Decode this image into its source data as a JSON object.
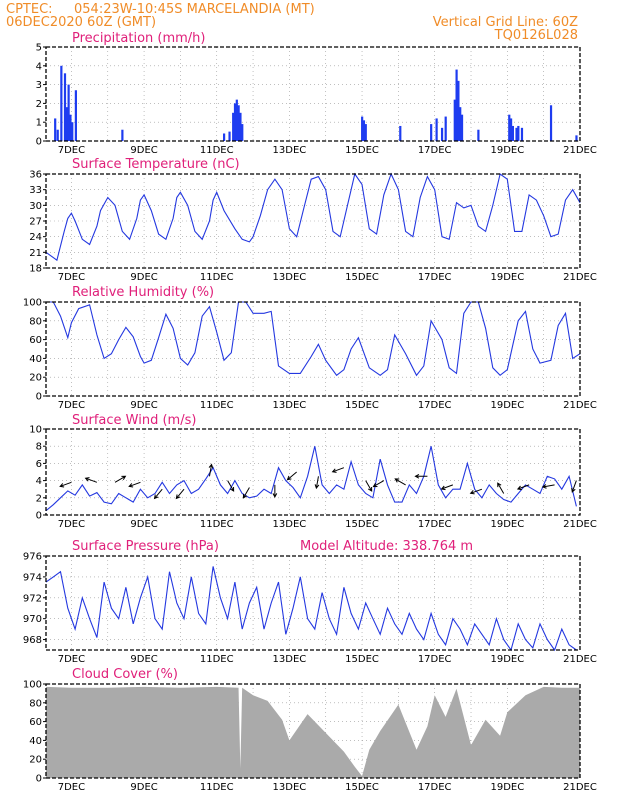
{
  "header": {
    "source": "CPTEC:",
    "location": "054:23W-10:45S   MARCELANDIA (MT)",
    "datetime": "06DEC2020 60Z (GMT)",
    "grid_note": "Vertical Grid Line: 60Z",
    "model_code": "TQ0126L028"
  },
  "x_ticks": [
    "7DEC",
    "9DEC",
    "11DEC",
    "13DEC",
    "15DEC",
    "17DEC",
    "19DEC",
    "21DEC"
  ],
  "x_range_days": [
    6.3,
    21
  ],
  "chart_data": [
    {
      "type": "bar",
      "title": "Precipitation (mm/h)",
      "ylim": [
        0,
        5
      ],
      "yticks": [
        0,
        1,
        2,
        3,
        4,
        5
      ],
      "x": [
        6.55,
        6.62,
        6.72,
        6.82,
        6.87,
        6.92,
        6.97,
        7.02,
        7.12,
        8.4,
        11.2,
        11.35,
        11.45,
        11.5,
        11.55,
        11.6,
        11.65,
        11.7,
        15.0,
        15.05,
        15.1,
        16.05,
        16.9,
        17.05,
        17.2,
        17.3,
        17.55,
        17.6,
        17.65,
        17.7,
        17.75,
        18.2,
        19.05,
        19.1,
        19.15,
        19.25,
        19.3,
        19.4,
        20.2,
        20.9
      ],
      "values": [
        1.2,
        0.6,
        4.0,
        3.6,
        1.8,
        3.0,
        1.4,
        1.0,
        2.7,
        0.6,
        0.4,
        0.5,
        1.5,
        2.0,
        2.2,
        1.9,
        1.5,
        0.9,
        1.3,
        1.1,
        0.9,
        0.8,
        0.9,
        1.2,
        0.7,
        1.3,
        2.2,
        3.8,
        3.2,
        1.8,
        1.4,
        0.6,
        1.4,
        1.2,
        0.8,
        0.7,
        0.8,
        0.7,
        1.9,
        0.3
      ]
    },
    {
      "type": "line",
      "title": "Surface Temperature (nC)",
      "ylim": [
        18,
        36
      ],
      "yticks": [
        18,
        21,
        24,
        27,
        30,
        33,
        36
      ],
      "x": [
        6.3,
        6.4,
        6.5,
        6.6,
        6.8,
        6.9,
        7.0,
        7.1,
        7.3,
        7.5,
        7.7,
        7.8,
        8.0,
        8.2,
        8.4,
        8.6,
        8.8,
        8.9,
        9.0,
        9.2,
        9.4,
        9.6,
        9.8,
        9.9,
        10.0,
        10.2,
        10.4,
        10.6,
        10.8,
        10.9,
        11.0,
        11.2,
        11.5,
        11.7,
        11.9,
        12.0,
        12.2,
        12.4,
        12.6,
        12.8,
        13.0,
        13.2,
        13.4,
        13.6,
        13.8,
        14.0,
        14.2,
        14.4,
        14.6,
        14.8,
        15.0,
        15.2,
        15.4,
        15.6,
        15.8,
        16.0,
        16.2,
        16.4,
        16.6,
        16.8,
        17.0,
        17.2,
        17.4,
        17.6,
        17.8,
        18.0,
        18.2,
        18.4,
        18.6,
        18.8,
        19.0,
        19.2,
        19.4,
        19.6,
        19.8,
        20.0,
        20.2,
        20.4,
        20.6,
        20.8,
        21.0
      ],
      "values": [
        21,
        20.5,
        20,
        19.5,
        25,
        27.5,
        28.5,
        27,
        23.5,
        22.5,
        26,
        29,
        31.5,
        30,
        25,
        23.5,
        27.5,
        31,
        32,
        29,
        24.5,
        23.5,
        27.5,
        31.5,
        32.5,
        30,
        25,
        23.5,
        27,
        31,
        32.5,
        29,
        25.5,
        23.5,
        23,
        24,
        28,
        33,
        35,
        33,
        25.5,
        24,
        29.5,
        35,
        35.5,
        33,
        25,
        24,
        30,
        36,
        34,
        25.5,
        24.5,
        32,
        36,
        33,
        25,
        24,
        31.5,
        35.5,
        33,
        24,
        23.5,
        30.5,
        29.5,
        30,
        26,
        25,
        30,
        36,
        35,
        25,
        25,
        32,
        31,
        28,
        24,
        24.5,
        31,
        33,
        30.5
      ]
    },
    {
      "type": "line",
      "title": "Relative Humidity (%)",
      "ylim": [
        0,
        100
      ],
      "yticks": [
        0,
        20,
        40,
        60,
        80,
        100
      ],
      "x": [
        6.3,
        6.5,
        6.7,
        6.9,
        7.0,
        7.2,
        7.5,
        7.7,
        7.9,
        8.1,
        8.3,
        8.5,
        8.7,
        8.9,
        9.0,
        9.2,
        9.4,
        9.6,
        9.8,
        10.0,
        10.2,
        10.4,
        10.6,
        10.8,
        11.0,
        11.2,
        11.4,
        11.6,
        11.8,
        12.0,
        12.3,
        12.5,
        12.7,
        13.0,
        13.3,
        13.6,
        13.8,
        14.0,
        14.3,
        14.5,
        14.7,
        14.9,
        15.2,
        15.5,
        15.7,
        15.9,
        16.2,
        16.5,
        16.7,
        16.9,
        17.2,
        17.4,
        17.6,
        17.8,
        18.0,
        18.2,
        18.4,
        18.6,
        18.8,
        19.0,
        19.3,
        19.5,
        19.7,
        19.9,
        20.2,
        20.4,
        20.6,
        20.8,
        21.0
      ],
      "values": [
        100,
        100,
        85,
        62,
        78,
        93,
        97,
        65,
        40,
        45,
        60,
        73,
        63,
        42,
        35,
        38,
        62,
        87,
        72,
        40,
        33,
        46,
        85,
        95,
        68,
        38,
        46,
        100,
        100,
        88,
        88,
        90,
        32,
        24,
        24,
        42,
        55,
        38,
        22,
        28,
        50,
        62,
        30,
        22,
        28,
        65,
        45,
        22,
        32,
        80,
        60,
        30,
        24,
        88,
        100,
        100,
        72,
        30,
        22,
        28,
        80,
        90,
        50,
        35,
        38,
        75,
        88,
        40,
        45
      ]
    },
    {
      "type": "line",
      "title": "Surface Wind (m/s)",
      "ylim": [
        0,
        10
      ],
      "yticks": [
        0,
        2,
        4,
        6,
        8,
        10
      ],
      "x": [
        6.3,
        6.5,
        6.7,
        6.9,
        7.1,
        7.3,
        7.5,
        7.7,
        7.9,
        8.1,
        8.3,
        8.5,
        8.7,
        8.9,
        9.1,
        9.3,
        9.5,
        9.7,
        9.9,
        10.1,
        10.3,
        10.5,
        10.7,
        10.9,
        11.1,
        11.3,
        11.5,
        11.7,
        11.9,
        12.1,
        12.3,
        12.5,
        12.7,
        12.9,
        13.1,
        13.3,
        13.5,
        13.7,
        13.9,
        14.1,
        14.3,
        14.5,
        14.7,
        14.9,
        15.1,
        15.3,
        15.5,
        15.7,
        15.9,
        16.1,
        16.3,
        16.5,
        16.7,
        16.9,
        17.1,
        17.3,
        17.5,
        17.7,
        17.9,
        18.1,
        18.3,
        18.5,
        18.7,
        18.9,
        19.1,
        19.3,
        19.5,
        19.7,
        19.9,
        20.1,
        20.3,
        20.5,
        20.7,
        20.9
      ],
      "values": [
        0.5,
        1.2,
        2.0,
        2.8,
        2.3,
        3.5,
        2.2,
        2.6,
        1.5,
        1.3,
        2.5,
        2.0,
        1.5,
        3.0,
        2.0,
        2.5,
        3.8,
        2.5,
        3.5,
        4.0,
        2.5,
        3.0,
        4.2,
        5.5,
        3.5,
        2.5,
        4.0,
        2.5,
        2.0,
        2.2,
        3.0,
        2.5,
        5.5,
        4.0,
        3.2,
        2.0,
        4.5,
        8.0,
        3.5,
        2.5,
        3.5,
        3.0,
        6.2,
        3.5,
        2.5,
        2.0,
        6.5,
        3.5,
        1.5,
        1.5,
        3.5,
        2.5,
        4.5,
        8.0,
        3.5,
        2.0,
        3.0,
        3.0,
        6.0,
        3.0,
        2.0,
        3.5,
        2.5,
        1.8,
        1.5,
        2.5,
        3.5,
        3.0,
        2.5,
        4.5,
        4.2,
        3.0,
        4.5,
        1.0
      ],
      "arrows": [
        {
          "x": 7.0,
          "speed": 3.8,
          "dir_deg": 200
        },
        {
          "x": 7.7,
          "speed": 3.8,
          "dir_deg": 160
        },
        {
          "x": 8.2,
          "speed": 3.8,
          "dir_deg": 30
        },
        {
          "x": 8.9,
          "speed": 3.8,
          "dir_deg": 200
        },
        {
          "x": 9.5,
          "speed": 3.0,
          "dir_deg": 230
        },
        {
          "x": 10.1,
          "speed": 3.0,
          "dir_deg": 230
        },
        {
          "x": 10.8,
          "speed": 4.5,
          "dir_deg": 80
        },
        {
          "x": 11.3,
          "speed": 4.0,
          "dir_deg": 300
        },
        {
          "x": 11.9,
          "speed": 3.2,
          "dir_deg": 240
        },
        {
          "x": 12.6,
          "speed": 3.5,
          "dir_deg": 270
        },
        {
          "x": 13.2,
          "speed": 5.0,
          "dir_deg": 220
        },
        {
          "x": 13.8,
          "speed": 4.5,
          "dir_deg": 260
        },
        {
          "x": 14.5,
          "speed": 5.5,
          "dir_deg": 200
        },
        {
          "x": 15.1,
          "speed": 4.0,
          "dir_deg": 300
        },
        {
          "x": 15.6,
          "speed": 4.0,
          "dir_deg": 210
        },
        {
          "x": 16.2,
          "speed": 3.5,
          "dir_deg": 150
        },
        {
          "x": 16.8,
          "speed": 4.5,
          "dir_deg": 180
        },
        {
          "x": 17.5,
          "speed": 3.5,
          "dir_deg": 200
        },
        {
          "x": 18.3,
          "speed": 3.0,
          "dir_deg": 200
        },
        {
          "x": 18.9,
          "speed": 2.5,
          "dir_deg": 120
        },
        {
          "x": 19.6,
          "speed": 3.5,
          "dir_deg": 200
        },
        {
          "x": 20.3,
          "speed": 3.5,
          "dir_deg": 190
        },
        {
          "x": 20.9,
          "speed": 4.0,
          "dir_deg": 250
        }
      ]
    },
    {
      "type": "line",
      "title": "Surface Pressure (hPa)",
      "subtitle": "Model Altitude: 338.764 m",
      "ylim": [
        967,
        976
      ],
      "yticks": [
        968,
        970,
        972,
        974,
        976
      ],
      "x": [
        6.3,
        6.5,
        6.7,
        6.9,
        7.1,
        7.3,
        7.5,
        7.7,
        7.9,
        8.1,
        8.3,
        8.5,
        8.7,
        8.9,
        9.1,
        9.3,
        9.5,
        9.7,
        9.9,
        10.1,
        10.3,
        10.5,
        10.7,
        10.9,
        11.1,
        11.3,
        11.5,
        11.7,
        11.9,
        12.1,
        12.3,
        12.5,
        12.7,
        12.9,
        13.1,
        13.3,
        13.5,
        13.7,
        13.9,
        14.1,
        14.3,
        14.5,
        14.7,
        14.9,
        15.1,
        15.3,
        15.5,
        15.7,
        15.9,
        16.1,
        16.3,
        16.5,
        16.7,
        16.9,
        17.1,
        17.3,
        17.5,
        17.7,
        17.9,
        18.1,
        18.3,
        18.5,
        18.7,
        18.9,
        19.1,
        19.3,
        19.5,
        19.7,
        19.9,
        20.1,
        20.3,
        20.5,
        20.7,
        20.9
      ],
      "values": [
        973.5,
        974.0,
        974.5,
        971.0,
        969.0,
        972.0,
        970.0,
        968.2,
        973.5,
        971.0,
        970.0,
        973.0,
        969.5,
        972.0,
        974.0,
        970.0,
        969.0,
        974.5,
        971.5,
        970.0,
        974.0,
        970.5,
        969.5,
        975.0,
        972.0,
        970.0,
        973.5,
        969.0,
        971.5,
        973.0,
        969.0,
        971.5,
        973.5,
        968.5,
        971.0,
        974.0,
        970.0,
        969.0,
        972.5,
        970.0,
        968.5,
        973.0,
        970.5,
        969.0,
        971.5,
        970.0,
        968.5,
        971.0,
        969.5,
        968.5,
        970.5,
        969.0,
        968.0,
        970.5,
        968.5,
        967.5,
        970.0,
        969.0,
        967.5,
        969.5,
        968.5,
        967.5,
        970.0,
        968.0,
        967.0,
        969.5,
        968.0,
        967.2,
        969.5,
        968.0,
        967.0,
        969.0,
        967.5,
        967.0
      ]
    },
    {
      "type": "area",
      "title": "Cloud Cover (%)",
      "ylim": [
        0,
        100
      ],
      "yticks": [
        0,
        20,
        40,
        60,
        80,
        100
      ],
      "x": [
        6.3,
        7.0,
        8.0,
        9.0,
        10.0,
        11.0,
        11.6,
        11.65,
        11.7,
        12.0,
        12.4,
        12.8,
        13.0,
        13.5,
        14.0,
        14.5,
        14.8,
        15.0,
        15.2,
        15.5,
        16.0,
        16.5,
        16.8,
        17.0,
        17.3,
        17.6,
        18.0,
        18.4,
        18.8,
        19.0,
        19.5,
        20.0,
        20.5,
        21.0
      ],
      "values": [
        97,
        96,
        96,
        97,
        96,
        97,
        96,
        10,
        96,
        88,
        82,
        62,
        40,
        68,
        48,
        28,
        12,
        2,
        30,
        50,
        78,
        30,
        55,
        88,
        65,
        95,
        35,
        62,
        45,
        70,
        88,
        97,
        96,
        96
      ]
    }
  ]
}
